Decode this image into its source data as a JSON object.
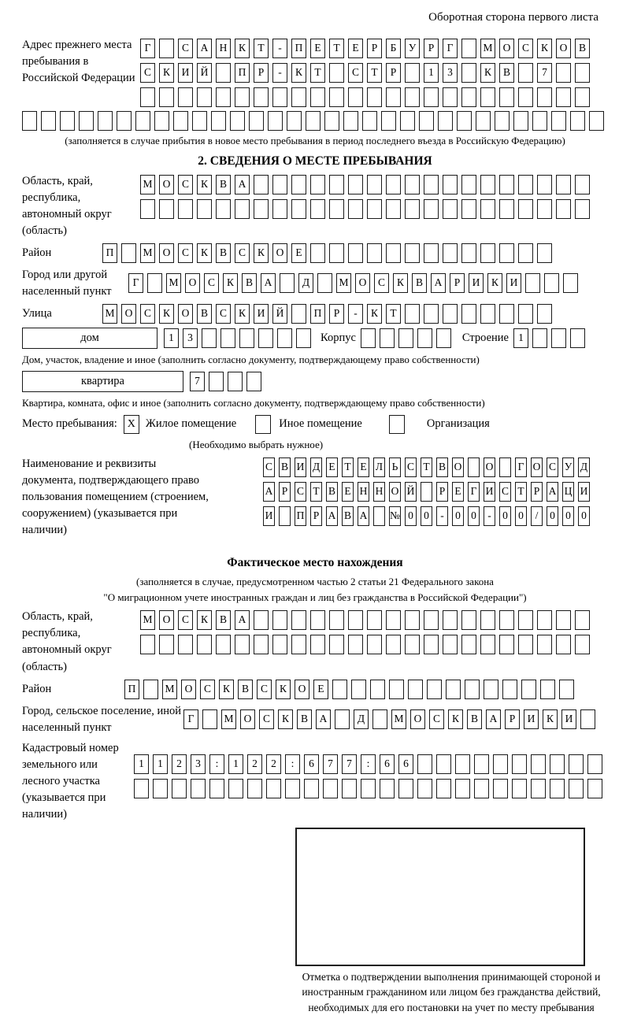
{
  "header": "Оборотная сторона первого листа",
  "prev_address": {
    "label": "Адрес прежнего места пребывания в Российской Федерации",
    "rows": [
      {
        "count": 24,
        "chars": [
          "Г",
          "",
          "С",
          "А",
          "Н",
          "К",
          "Т",
          "-",
          "П",
          "Е",
          "Т",
          "Е",
          "Р",
          "Б",
          "У",
          "Р",
          "Г",
          "",
          "М",
          "О",
          "С",
          "К",
          "О",
          "В"
        ]
      },
      {
        "count": 24,
        "chars": [
          "С",
          "К",
          "И",
          "Й",
          "",
          "П",
          "Р",
          "-",
          "К",
          "Т",
          "",
          "С",
          "Т",
          "Р",
          "",
          "1",
          "3",
          "",
          "К",
          "В",
          "",
          "7",
          "",
          ""
        ]
      },
      {
        "count": 24,
        "chars": []
      },
      {
        "count": 31,
        "chars": []
      }
    ],
    "note": "(заполняется в случае прибытия в новое место пребывания в период последнего въезда в Российскую Федерацию)"
  },
  "stay_info": {
    "title": "2. СВЕДЕНИЯ О МЕСТЕ ПРЕБЫВАНИЯ",
    "region_label": "Область, край, республика, автономный округ (область)",
    "region_rows": [
      {
        "count": 24,
        "chars": [
          "М",
          "О",
          "С",
          "К",
          "В",
          "А"
        ]
      },
      {
        "count": 24,
        "chars": []
      }
    ],
    "district_label": "Район",
    "district_row": {
      "count": 24,
      "chars": [
        "П",
        "",
        "М",
        "О",
        "С",
        "К",
        "В",
        "С",
        "К",
        "О",
        "Е"
      ]
    },
    "city_label": "Город или другой населенный пункт",
    "city_row": {
      "count": 24,
      "chars": [
        "Г",
        "",
        "М",
        "О",
        "С",
        "К",
        "В",
        "А",
        "",
        "Д",
        "",
        "М",
        "О",
        "С",
        "К",
        "В",
        "А",
        "Р",
        "И",
        "К",
        "И"
      ]
    },
    "street_label": "Улица",
    "street_row": {
      "count": 24,
      "chars": [
        "М",
        "О",
        "С",
        "К",
        "О",
        "В",
        "С",
        "К",
        "И",
        "Й",
        "",
        "П",
        "Р",
        "-",
        "К",
        "Т"
      ]
    },
    "house_label": "дом",
    "house_row": {
      "count": 8,
      "chars": [
        "1",
        "3"
      ]
    },
    "korpus_label": "Корпус",
    "korpus_row": {
      "count": 5,
      "chars": []
    },
    "stroenie_label": "Строение",
    "stroenie_row": {
      "count": 4,
      "chars": [
        "1"
      ]
    },
    "house_note": "Дом, участок, владение и иное (заполнить согласно документу, подтверждающему право собственности)",
    "apartment_label": "квартира",
    "apartment_row": {
      "count": 4,
      "chars": [
        "7"
      ]
    },
    "apartment_note": "Квартира, комната, офис и иное (заполнить согласно документу, подтверждающему право собственности)",
    "premises_label": "Место пребывания:",
    "premises_options": [
      {
        "mark": "X",
        "label": "Жилое помещение"
      },
      {
        "mark": "",
        "label": "Иное помещение"
      },
      {
        "mark": "",
        "label": "Организация"
      }
    ],
    "premises_note": "(Необходимо выбрать нужное)",
    "doc_label": "Наименование и реквизиты документа, подтверждающего право пользования помещением (строением, сооружением) (указывается при наличии)",
    "doc_rows": [
      {
        "count": 21,
        "chars": [
          "С",
          "В",
          "И",
          "Д",
          "Е",
          "Т",
          "Е",
          "Л",
          "Ь",
          "С",
          "Т",
          "В",
          "О",
          "",
          "О",
          "",
          "Г",
          "О",
          "С",
          "У",
          "Д"
        ]
      },
      {
        "count": 21,
        "chars": [
          "А",
          "Р",
          "С",
          "Т",
          "В",
          "Е",
          "Н",
          "Н",
          "О",
          "Й",
          "",
          "Р",
          "Е",
          "Г",
          "И",
          "С",
          "Т",
          "Р",
          "А",
          "Ц",
          "И"
        ]
      },
      {
        "count": 21,
        "chars": [
          "И",
          "",
          "П",
          "Р",
          "А",
          "В",
          "А",
          "",
          "№",
          "0",
          "0",
          "-",
          "0",
          "0",
          "-",
          "0",
          "0",
          "/",
          "0",
          "0",
          "0"
        ]
      }
    ]
  },
  "actual_location": {
    "title": "Фактическое место нахождения",
    "note1": "(заполняется в случае, предусмотренном частью 2 статьи 21 Федерального закона",
    "note2": "\"О миграционном учете иностранных граждан и лиц без гражданства в Российской Федерации\")",
    "region_label": "Область, край, республика, автономный округ (область)",
    "region_rows": [
      {
        "count": 24,
        "chars": [
          "М",
          "О",
          "С",
          "К",
          "В",
          "А"
        ]
      },
      {
        "count": 24,
        "chars": []
      }
    ],
    "district_label": "Район",
    "district_row": {
      "count": 24,
      "chars": [
        "П",
        "",
        "М",
        "О",
        "С",
        "К",
        "В",
        "С",
        "К",
        "О",
        "Е"
      ]
    },
    "city_label": "Город, сельское поселение, иной населенный пункт",
    "city_row": {
      "count": 22,
      "chars": [
        "Г",
        "",
        "М",
        "О",
        "С",
        "К",
        "В",
        "А",
        "",
        "Д",
        "",
        "М",
        "О",
        "С",
        "К",
        "В",
        "А",
        "Р",
        "И",
        "К",
        "И"
      ]
    },
    "cadastral_label": "Кадастровый номер земельного или лесного участка (указывается при наличии)",
    "cadastral_rows": [
      {
        "count": 25,
        "chars": [
          "1",
          "1",
          "2",
          "3",
          ":",
          "1",
          "2",
          "2",
          ":",
          "6",
          "7",
          "7",
          ":",
          "6",
          "6"
        ]
      },
      {
        "count": 25,
        "chars": []
      }
    ],
    "stamp_note": "Отметка о подтверждении выполнения принимающей стороной и иностранным гражданином или лицом без гражданства действий, необходимых для его постановки на учет по месту пребывания"
  }
}
